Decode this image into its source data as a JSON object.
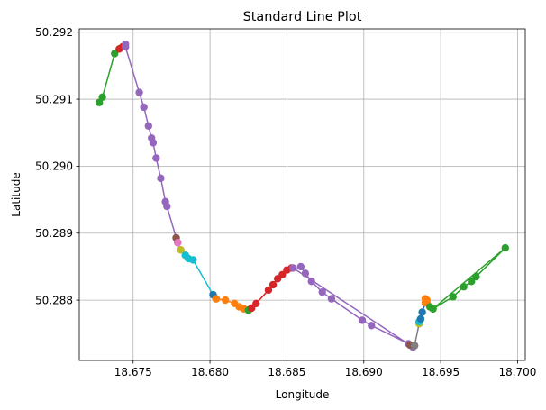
{
  "chart_data": {
    "type": "line",
    "title": "Standard Line Plot",
    "xlabel": "Longitude",
    "ylabel": "Latitude",
    "xlim": [
      18.6715,
      18.7005
    ],
    "ylim": [
      50.2871,
      50.29205
    ],
    "xticks": [
      18.675,
      18.68,
      18.685,
      18.69,
      18.695,
      18.7
    ],
    "xtick_labels": [
      "18.675",
      "18.680",
      "18.685",
      "18.690",
      "18.695",
      "18.700"
    ],
    "yticks": [
      50.288,
      50.289,
      50.29,
      50.291,
      50.292
    ],
    "ytick_labels": [
      "50.288",
      "50.289",
      "50.290",
      "50.291",
      "50.292"
    ],
    "grid": true,
    "legend": false,
    "series": [
      {
        "color": "#2ca02c",
        "points": [
          [
            18.6728,
            50.29095
          ],
          [
            18.673,
            50.29103
          ],
          [
            18.6738,
            50.29168
          ],
          [
            18.6741,
            50.29175
          ]
        ]
      },
      {
        "color": "#d62728",
        "points": [
          [
            18.6741,
            50.29175
          ],
          [
            18.6743,
            50.29178
          ]
        ]
      },
      {
        "color": "#9467bd",
        "points": [
          [
            18.6745,
            50.29182
          ],
          [
            18.6745,
            50.29178
          ],
          [
            18.6754,
            50.2911
          ],
          [
            18.6757,
            50.29088
          ],
          [
            18.676,
            50.2906
          ],
          [
            18.6762,
            50.29042
          ],
          [
            18.6763,
            50.29035
          ],
          [
            18.6765,
            50.29012
          ],
          [
            18.6768,
            50.28982
          ],
          [
            18.6771,
            50.28947
          ],
          [
            18.6772,
            50.2894
          ],
          [
            18.6778,
            50.28893
          ]
        ]
      },
      {
        "color": "#8c564b",
        "points": [
          [
            18.6778,
            50.28893
          ],
          [
            18.6779,
            50.28886
          ]
        ]
      },
      {
        "color": "#e377c2",
        "points": [
          [
            18.6779,
            50.28886
          ],
          [
            18.6781,
            50.28875
          ]
        ]
      },
      {
        "color": "#bcbd22",
        "points": [
          [
            18.6781,
            50.28875
          ],
          [
            18.6784,
            50.28867
          ]
        ]
      },
      {
        "color": "#17becf",
        "points": [
          [
            18.6784,
            50.28867
          ],
          [
            18.6786,
            50.28862
          ],
          [
            18.6789,
            50.2886
          ],
          [
            18.6802,
            50.28808
          ]
        ]
      },
      {
        "color": "#1f77b4",
        "points": [
          [
            18.6802,
            50.28808
          ],
          [
            18.6804,
            50.28802
          ]
        ]
      },
      {
        "color": "#ff7f0e",
        "points": [
          [
            18.6804,
            50.28802
          ],
          [
            18.681,
            50.288
          ],
          [
            18.6816,
            50.28795
          ],
          [
            18.6819,
            50.2879
          ],
          [
            18.6822,
            50.28787
          ],
          [
            18.6825,
            50.28785
          ]
        ]
      },
      {
        "color": "#2ca02c",
        "points": [
          [
            18.6825,
            50.28785
          ],
          [
            18.6827,
            50.28788
          ]
        ]
      },
      {
        "color": "#d62728",
        "points": [
          [
            18.6827,
            50.28788
          ],
          [
            18.683,
            50.28795
          ],
          [
            18.6838,
            50.28815
          ],
          [
            18.6841,
            50.28823
          ],
          [
            18.6844,
            50.28832
          ],
          [
            18.6847,
            50.28838
          ],
          [
            18.685,
            50.28845
          ],
          [
            18.6853,
            50.28848
          ]
        ]
      },
      {
        "color": "#9467bd",
        "points": [
          [
            18.6859,
            50.2885
          ],
          [
            18.6862,
            50.2884
          ],
          [
            18.6866,
            50.28828
          ],
          [
            18.6873,
            50.28812
          ],
          [
            18.6879,
            50.28802
          ],
          [
            18.6899,
            50.2877
          ],
          [
            18.6905,
            50.28762
          ],
          [
            18.6929,
            50.28735
          ],
          [
            18.6932,
            50.2873
          ],
          [
            18.693,
            50.28733
          ],
          [
            18.6854,
            50.28848
          ]
        ]
      },
      {
        "color": "#8c564b",
        "points": [
          [
            18.693,
            50.28733
          ],
          [
            18.6933,
            50.28732
          ]
        ]
      },
      {
        "color": "#7f7f7f",
        "points": [
          [
            18.6933,
            50.28732
          ],
          [
            18.6936,
            50.28765
          ]
        ]
      },
      {
        "color": "#bcbd22",
        "points": [
          [
            18.6936,
            50.28765
          ],
          [
            18.6936,
            50.28768
          ]
        ]
      },
      {
        "color": "#17becf",
        "points": [
          [
            18.6936,
            50.28768
          ],
          [
            18.6937,
            50.28772
          ]
        ]
      },
      {
        "color": "#1f77b4",
        "points": [
          [
            18.6937,
            50.28772
          ],
          [
            18.6938,
            50.28782
          ],
          [
            18.694,
            50.28796
          ]
        ]
      },
      {
        "color": "#ff7f0e",
        "points": [
          [
            18.694,
            50.28796
          ],
          [
            18.694,
            50.28802
          ],
          [
            18.6941,
            50.288
          ],
          [
            18.6941,
            50.28797
          ],
          [
            18.6943,
            50.2879
          ]
        ]
      },
      {
        "color": "#2ca02c",
        "points": [
          [
            18.6943,
            50.2879
          ],
          [
            18.6945,
            50.28787
          ],
          [
            18.6958,
            50.28805
          ],
          [
            18.6965,
            50.2882
          ],
          [
            18.697,
            50.28828
          ],
          [
            18.6973,
            50.28835
          ],
          [
            18.6992,
            50.28878
          ],
          [
            18.6945,
            50.28787
          ]
        ]
      }
    ]
  }
}
